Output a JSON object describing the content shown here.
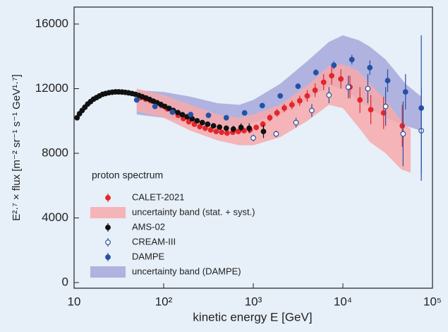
{
  "chart_data": {
    "type": "scatter",
    "xlabel": "kinetic energy E [GeV]",
    "ylabel": "E²·⁷ × flux [m⁻² sr⁻¹ s⁻¹ GeV¹·⁷]",
    "xlog": true,
    "xlim": [
      10,
      100000
    ],
    "ylim": [
      -350,
      17050
    ],
    "xticks": [
      10,
      {
        "value": 100,
        "label": "10²"
      },
      {
        "value": 1000,
        "label": "10³"
      },
      {
        "value": 10000,
        "label": "10⁴"
      },
      {
        "value": 100000,
        "label": "10⁵"
      }
    ],
    "yticks": [
      0,
      4000,
      8000,
      12000,
      16000
    ],
    "legend_title": "proton spectrum",
    "series": [
      {
        "name": "CALET-2021",
        "kind": "points",
        "marker": "filled",
        "color": "#e3262b",
        "x": [
          55,
          63,
          72,
          83,
          95,
          110,
          126,
          145,
          166,
          191,
          220,
          253,
          291,
          335,
          385,
          443,
          510,
          590,
          680,
          790,
          920,
          1080,
          1280,
          1530,
          1840,
          2220,
          2700,
          3300,
          4000,
          4900,
          6100,
          7500,
          9500,
          12000,
          15500,
          20500,
          28500,
          46000
        ],
        "values": [
          11450,
          11350,
          11250,
          11100,
          10950,
          10750,
          10550,
          10350,
          10150,
          9950,
          9800,
          9650,
          9550,
          9450,
          9350,
          9300,
          9250,
          9300,
          9350,
          9400,
          9450,
          9600,
          9800,
          10200,
          10500,
          10800,
          11000,
          11250,
          11550,
          11900,
          12400,
          12800,
          12600,
          12100,
          11300,
          10700,
          10500,
          9700
        ],
        "errors": [
          120,
          120,
          120,
          120,
          120,
          120,
          120,
          120,
          120,
          120,
          120,
          120,
          120,
          120,
          130,
          130,
          130,
          140,
          150,
          160,
          170,
          180,
          200,
          220,
          240,
          260,
          280,
          320,
          360,
          420,
          500,
          550,
          600,
          700,
          800,
          900,
          1000,
          1300
        ]
      },
      {
        "name": "uncertainty band (stat. + syst.)",
        "kind": "band",
        "color": "#f7a9ab",
        "x": [
          50,
          100,
          200,
          400,
          700,
          1000,
          2000,
          4000,
          7000,
          10000,
          15000,
          20000,
          30000,
          45000,
          57000
        ],
        "lower": [
          10600,
          10200,
          9400,
          8800,
          8500,
          8500,
          9000,
          10000,
          11000,
          10800,
          9600,
          8700,
          8000,
          7000,
          6800
        ],
        "upper": [
          12000,
          11600,
          11000,
          10400,
          10200,
          10400,
          11000,
          12200,
          13400,
          13500,
          13100,
          12300,
          11300,
          10000,
          9500
        ]
      },
      {
        "name": "AMS-02",
        "kind": "points",
        "marker": "filled",
        "color": "#111111",
        "x": [
          10.8,
          11.5,
          12.3,
          13.2,
          14.2,
          15.3,
          16.5,
          17.8,
          19.2,
          20.8,
          22.5,
          24.5,
          26.7,
          29,
          31.5,
          34.3,
          37.3,
          40.6,
          44.3,
          48.3,
          52.9,
          57.9,
          63.5,
          69.7,
          76.6,
          84.3,
          93,
          103,
          115,
          128,
          144,
          162,
          183,
          208,
          236,
          270,
          310,
          360,
          420,
          500,
          600,
          730,
          900,
          1300
        ],
        "values": [
          10200,
          10450,
          10650,
          10850,
          11050,
          11200,
          11350,
          11450,
          11550,
          11650,
          11700,
          11750,
          11780,
          11800,
          11800,
          11790,
          11770,
          11740,
          11700,
          11650,
          11580,
          11500,
          11420,
          11330,
          11230,
          11130,
          11020,
          10900,
          10780,
          10650,
          10520,
          10390,
          10260,
          10130,
          10010,
          9900,
          9800,
          9700,
          9620,
          9550,
          9500,
          9600,
          9550,
          9350
        ],
        "errors": [
          60,
          60,
          60,
          60,
          60,
          60,
          60,
          60,
          60,
          60,
          60,
          60,
          60,
          60,
          60,
          60,
          60,
          60,
          60,
          60,
          60,
          60,
          60,
          60,
          60,
          60,
          60,
          70,
          70,
          70,
          80,
          80,
          90,
          90,
          100,
          110,
          120,
          130,
          150,
          170,
          200,
          250,
          300,
          400
        ]
      },
      {
        "name": "CREAM-III",
        "kind": "points",
        "marker": "open",
        "color": "#2c4f9e",
        "x": [
          1000,
          1800,
          3000,
          4500,
          7000,
          11500,
          19000,
          30000,
          47000,
          75000
        ],
        "values": [
          8950,
          9200,
          9900,
          10650,
          11600,
          12100,
          12000,
          10900,
          9200,
          9400
        ],
        "errors": [
          200,
          200,
          300,
          400,
          500,
          700,
          900,
          1200,
          2000,
          2700
        ]
      },
      {
        "name": "DAMPE",
        "kind": "points",
        "marker": "filled",
        "color": "#2451a6",
        "x": [
          50,
          80,
          125,
          200,
          316,
          500,
          800,
          1260,
          2000,
          3160,
          5000,
          7940,
          12600,
          20000,
          31600,
          50000,
          75000
        ],
        "values": [
          11300,
          10900,
          10550,
          10400,
          10350,
          10200,
          10500,
          10950,
          11550,
          12150,
          13000,
          13450,
          13800,
          13300,
          12500,
          11800,
          10800
        ],
        "errors": [
          60,
          60,
          60,
          60,
          60,
          70,
          80,
          100,
          120,
          150,
          200,
          250,
          300,
          450,
          700,
          1100,
          4500
        ]
      },
      {
        "name": "uncertainty band (DAMPE)",
        "kind": "band",
        "color": "#a6a8da",
        "x": [
          50,
          100,
          200,
          400,
          700,
          1000,
          2000,
          4000,
          7000,
          10000,
          15000,
          20000,
          30000,
          50000,
          75000
        ],
        "lower": [
          10400,
          10200,
          9900,
          9700,
          9700,
          9900,
          10400,
          11300,
          12200,
          12000,
          11300,
          10800,
          10200,
          9700,
          9400
        ],
        "upper": [
          11900,
          11800,
          11500,
          11100,
          11000,
          11300,
          12300,
          13700,
          14900,
          15300,
          15000,
          14600,
          13800,
          12300,
          11500
        ]
      }
    ]
  }
}
